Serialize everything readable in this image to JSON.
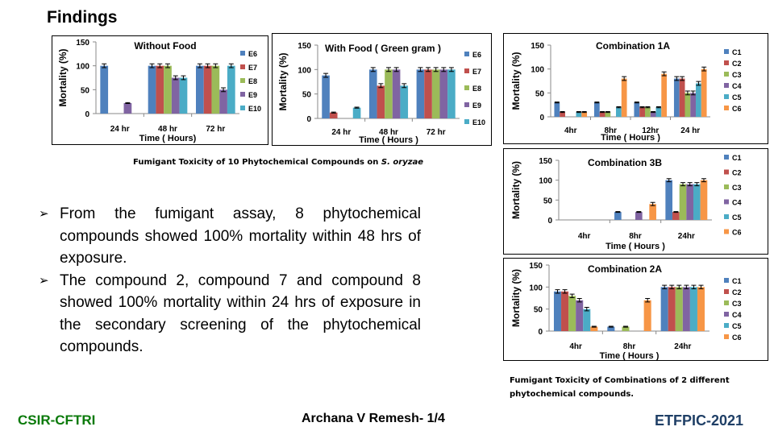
{
  "slide": {
    "title": "Findings",
    "caption1_prefix": "Fumigant Toxicity of 10 Phytochemical  Compounds on ",
    "caption1_species": "S. oryzae",
    "caption2_line1": "Fumigant Toxicity of Combinations of 2 different",
    "caption2_line2": "phytochemical  compounds.",
    "bullets": [
      "From the fumigant assay, 8 phytochemical compounds showed 100% mortality within 48 hrs of exposure.",
      "The compound 2, compound 7 and compound 8 showed 100% mortality  within 24 hrs of exposure in the secondary screening of the phytochemical compounds."
    ],
    "bullet_icon": "arrow-bullet-icon",
    "footer_left": "CSIR-CFTRI",
    "footer_center": "Archana V Remesh- 1/4",
    "footer_right": "ETFPIC-2021"
  },
  "colors": {
    "series": [
      "#4F81BD",
      "#C0504D",
      "#9BBB59",
      "#8064A2",
      "#4BACC6",
      "#F79646"
    ],
    "org": "#0a7a0a",
    "conf": "#1f3f66"
  },
  "chart_data": [
    {
      "type": "bar",
      "title": "Without Food",
      "xlabel": "Time ( Hours)",
      "ylabel": "Mortality (%)",
      "ylim": [
        0,
        150
      ],
      "yticks": [
        0,
        50,
        100,
        150
      ],
      "categories": [
        "24 hr",
        "48 hr",
        "72 hr"
      ],
      "series": [
        {
          "name": "E6",
          "values": [
            100,
            100,
            100
          ]
        },
        {
          "name": "E7",
          "values": [
            0,
            100,
            100
          ]
        },
        {
          "name": "E8",
          "values": [
            0,
            100,
            100
          ]
        },
        {
          "name": "E9",
          "values": [
            22,
            75,
            50
          ]
        },
        {
          "name": "E10",
          "values": [
            0,
            75,
            100
          ]
        }
      ],
      "legend": "right"
    },
    {
      "type": "bar",
      "title": "With Food ( Green gram )",
      "xlabel": "Time ( Hours )",
      "ylabel": "Mortality (%)",
      "ylim": [
        0,
        150
      ],
      "yticks": [
        0,
        50,
        100,
        150
      ],
      "categories": [
        "24 hr",
        "48 hr",
        "72 hr"
      ],
      "series": [
        {
          "name": "E6",
          "values": [
            88,
            100,
            100
          ]
        },
        {
          "name": "E7",
          "values": [
            12,
            67,
            100
          ]
        },
        {
          "name": "E8",
          "values": [
            0,
            100,
            100
          ]
        },
        {
          "name": "E9",
          "values": [
            0,
            100,
            100
          ]
        },
        {
          "name": "E10",
          "values": [
            22,
            67,
            100
          ]
        }
      ],
      "legend": "right"
    },
    {
      "type": "bar",
      "title": "Combination 1A",
      "xlabel": "Time ( Hours )",
      "ylabel": "Mortality (%)",
      "ylim": [
        0,
        150
      ],
      "yticks": [
        0,
        50,
        100,
        150
      ],
      "categories": [
        "4hr",
        "8hr",
        "12hr",
        "24 hr"
      ],
      "series": [
        {
          "name": "C1",
          "values": [
            30,
            30,
            30,
            80
          ]
        },
        {
          "name": "C2",
          "values": [
            10,
            10,
            20,
            80
          ]
        },
        {
          "name": "C3",
          "values": [
            0,
            10,
            20,
            50
          ]
        },
        {
          "name": "C4",
          "values": [
            0,
            0,
            10,
            50
          ]
        },
        {
          "name": "C5",
          "values": [
            10,
            20,
            20,
            70
          ]
        },
        {
          "name": "C6",
          "values": [
            10,
            80,
            90,
            100
          ]
        }
      ],
      "legend": "right"
    },
    {
      "type": "bar",
      "title": "Combination 3B",
      "xlabel": "Time ( Hours )",
      "ylabel": "Mortality (%)",
      "ylim": [
        0,
        150
      ],
      "yticks": [
        0,
        50,
        100,
        150
      ],
      "categories": [
        "4hr",
        "8hr",
        "24hr"
      ],
      "series": [
        {
          "name": "C1",
          "values": [
            0,
            20,
            100
          ]
        },
        {
          "name": "C2",
          "values": [
            0,
            0,
            20
          ]
        },
        {
          "name": "C3",
          "values": [
            0,
            0,
            90
          ]
        },
        {
          "name": "C4",
          "values": [
            0,
            20,
            90
          ]
        },
        {
          "name": "C5",
          "values": [
            0,
            0,
            90
          ]
        },
        {
          "name": "C6",
          "values": [
            0,
            40,
            100
          ]
        }
      ],
      "legend": "right"
    },
    {
      "type": "bar",
      "title": "Combination 2A",
      "xlabel": "Time ( Hours )",
      "ylabel": "Mortality (%)",
      "ylim": [
        0,
        150
      ],
      "yticks": [
        0,
        50,
        100,
        150
      ],
      "categories": [
        "4hr",
        "8hr",
        "24hr"
      ],
      "series": [
        {
          "name": "C1",
          "values": [
            90,
            10,
            100
          ]
        },
        {
          "name": "C2",
          "values": [
            90,
            0,
            100
          ]
        },
        {
          "name": "C3",
          "values": [
            80,
            10,
            100
          ]
        },
        {
          "name": "C4",
          "values": [
            70,
            0,
            100
          ]
        },
        {
          "name": "C5",
          "values": [
            50,
            0,
            100
          ]
        },
        {
          "name": "C6",
          "values": [
            10,
            70,
            100
          ]
        }
      ],
      "legend": "right"
    }
  ]
}
